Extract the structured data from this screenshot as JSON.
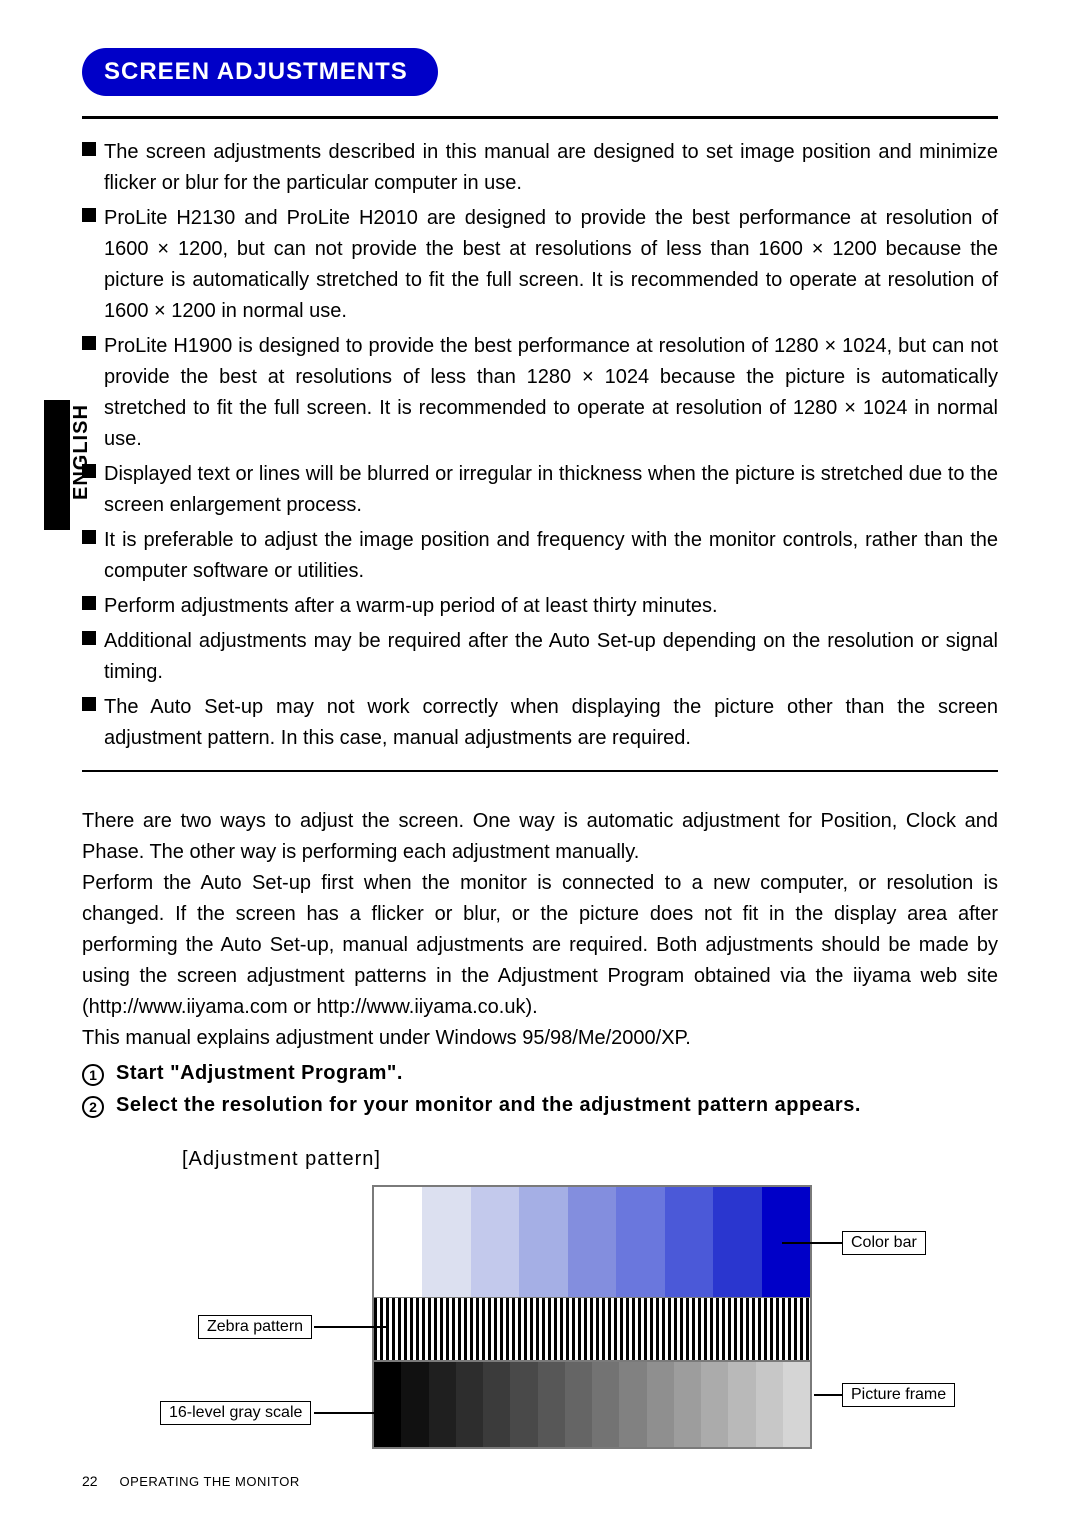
{
  "header": {
    "title": "SCREEN ADJUSTMENTS"
  },
  "sideTab": {
    "label": "ENGLISH"
  },
  "bullets": [
    "The screen adjustments described in this manual are designed to set image position and minimize flicker or blur for the particular computer in use.",
    "ProLite H2130 and ProLite H2010 are designed to provide the best performance at resolution of 1600 × 1200, but can not provide the best at resolutions of less than 1600 × 1200 because the picture is automatically stretched to fit the full screen. It is recommended to operate at resolution of 1600 × 1200 in normal use.",
    "ProLite H1900 is designed to provide the best performance at resolution of 1280 × 1024, but can not provide the best at resolutions of less than 1280 × 1024 because the picture is automatically stretched to fit the full screen. It is recommended to operate at resolution of 1280 × 1024 in normal use.",
    "Displayed text or lines will be blurred or irregular in thickness when the picture is stretched due to the screen enlargement process.",
    "It is preferable to adjust the image position and frequency with the monitor controls, rather than the computer software or utilities.",
    "Perform adjustments after a warm-up period of at least thirty minutes.",
    "Additional adjustments may be required after the Auto Set-up depending on the resolution or signal timing.",
    "The Auto Set-up may not work correctly when displaying the picture other than the screen adjustment pattern. In this case, manual adjustments are required."
  ],
  "body": {
    "p1": "There are two ways to adjust the screen. One way is automatic adjustment for Position, Clock and Phase. The other way is performing each adjustment manually.",
    "p2": "Perform the Auto Set-up first when the monitor is connected to a new computer, or resolution is changed. If the screen has a flicker or blur, or the picture does not fit in the display area after performing the Auto Set-up, manual adjustments are required. Both adjustments should be made by using the screen adjustment patterns in the Adjustment Program obtained via the iiyama web site (http://www.iiyama.com or http://www.iiyama.co.uk).",
    "p3": "This manual explains adjustment under Windows 95/98/Me/2000/XP."
  },
  "steps": {
    "s1": "Start \"Adjustment Program\".",
    "s2": "Select the resolution for your monitor and the adjustment pattern appears."
  },
  "pattern": {
    "label": "[Adjustment pattern]",
    "callouts": {
      "colorbar": "Color bar",
      "zebra": "Zebra pattern",
      "gray": "16-level gray scale",
      "frame": "Picture frame"
    },
    "colorbar_colors": [
      "#ffffff",
      "#dce0f0",
      "#c3c9ec",
      "#a5afe5",
      "#838ede",
      "#6a77dd",
      "#4b59d8",
      "#2a36cf",
      "#0000c8"
    ],
    "gray_levels": [
      "#000000",
      "#111111",
      "#1f1f1f",
      "#2d2d2d",
      "#3b3b3b",
      "#494949",
      "#575757",
      "#656565",
      "#737373",
      "#818181",
      "#8f8f8f",
      "#9d9d9d",
      "#ababab",
      "#b9b9b9",
      "#c7c7c7",
      "#d5d5d5"
    ]
  },
  "footer": {
    "page": "22",
    "section": "OPERATING THE MONITOR"
  }
}
